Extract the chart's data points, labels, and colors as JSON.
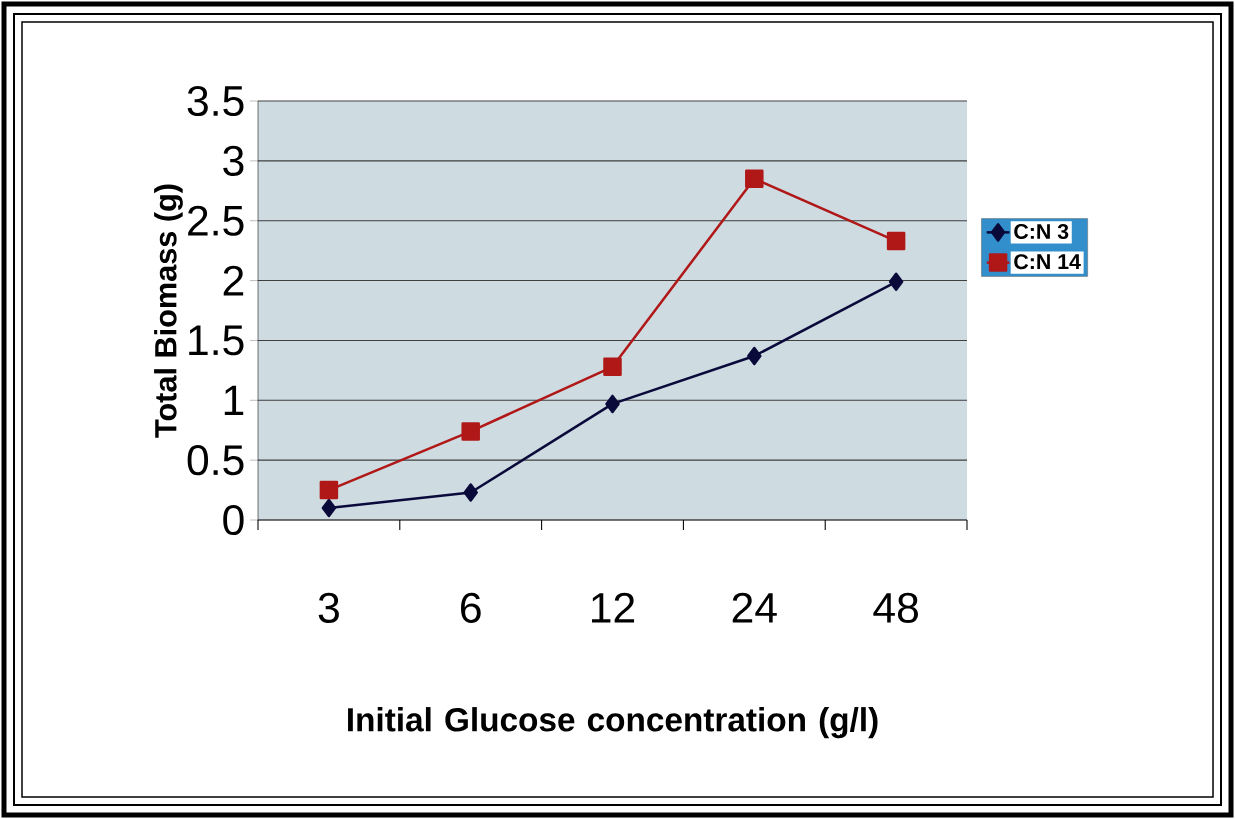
{
  "chart_data": {
    "type": "line",
    "xlabel": "Initial Glucose concentration (g/l)",
    "ylabel": "Total Biomass (g)",
    "categories": [
      "3",
      "6",
      "12",
      "24",
      "48"
    ],
    "series": [
      {
        "name": "C:N 3",
        "color": "#0a0a3a",
        "marker": "diamond",
        "values": [
          0.1,
          0.23,
          0.97,
          1.37,
          1.99
        ]
      },
      {
        "name": "C:N 14",
        "color": "#b01818",
        "marker": "square",
        "values": [
          0.25,
          0.74,
          1.28,
          2.85,
          2.33
        ]
      }
    ],
    "ylim": [
      0,
      3.5
    ],
    "yticks": [
      0,
      0.5,
      1,
      1.5,
      2,
      2.5,
      3,
      3.5
    ],
    "grid": "y",
    "legend": "right",
    "line_style": "solid"
  }
}
